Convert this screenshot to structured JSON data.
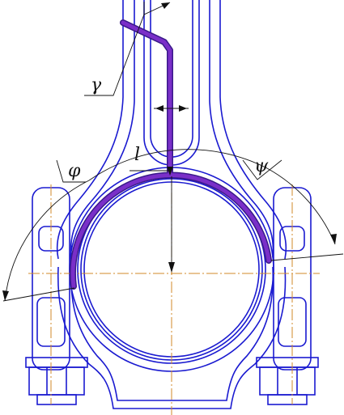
{
  "labels": {
    "gamma": "γ",
    "phi": "φ",
    "el": "l",
    "psi": "ψ"
  },
  "colors": {
    "outline": "#1a1ad0",
    "centerline": "#d08a2a",
    "dimension": "#111111",
    "highlight": "#7a2fc8",
    "highlight_edge": "#3a1a8a",
    "background": "#ffffff"
  }
}
